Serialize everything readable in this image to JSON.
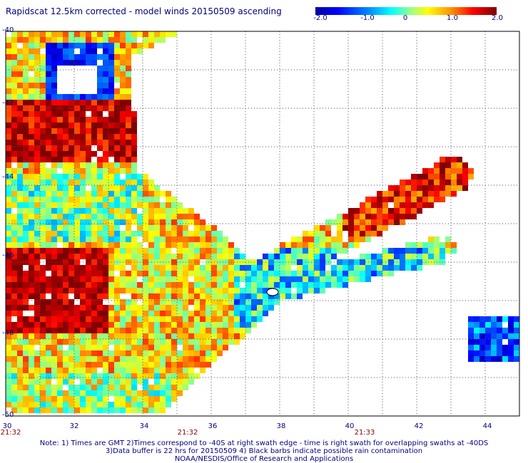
{
  "title": "Rapidscat 12.5km corrected - model winds 20150509 ascending",
  "colorbar": {
    "ticks": [
      "-2.0",
      "-1.0",
      "0",
      "1.0",
      "2.0"
    ],
    "min": -2.0,
    "max": 2.0
  },
  "lat_labels": [
    "-40",
    "-42",
    "-44",
    "-46",
    "-48",
    "-50"
  ],
  "lon_labels": [
    "30",
    "32",
    "34",
    "36",
    "38",
    "40",
    "42",
    "44"
  ],
  "time_labels": [
    "21:32",
    "21:32",
    "21:33"
  ],
  "notes": [
    "Note: 1) Times are GMT 2)Times correspond to -40S at right swath edge - time is right swath for overlapping swaths at -40DS",
    "3)Data buffer is 22 hrs for 20150509 4) Black barbs indicate possible rain contamination",
    "NOAA/NESDIS/Office of Research and Applications"
  ],
  "colors": {
    "label": "#000080",
    "time": "#8b0000",
    "grid": "#555555"
  }
}
